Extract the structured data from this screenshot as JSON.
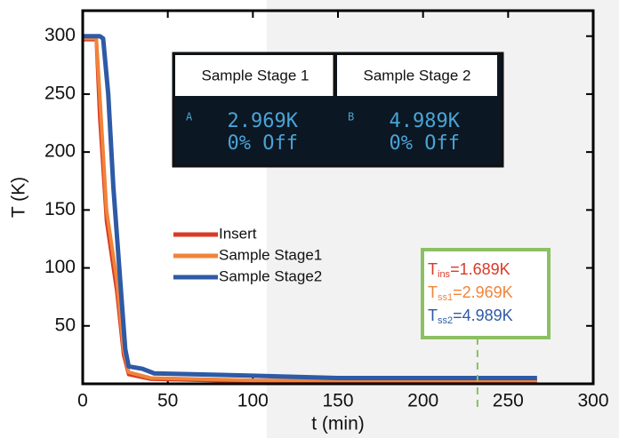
{
  "chart_data": {
    "type": "line",
    "x_label": "t (min)",
    "y_label": "T (K)",
    "xlim": [
      0,
      300
    ],
    "ylim": [
      0,
      322
    ],
    "xticks": [
      0,
      50,
      100,
      150,
      200,
      250,
      300
    ],
    "yticks": [
      50,
      100,
      150,
      200,
      250,
      300
    ],
    "series": [
      {
        "name": "Insert",
        "color": "#d93a26",
        "x": [
          0,
          8,
          10,
          14,
          20,
          24,
          27,
          40,
          100,
          267
        ],
        "values": [
          297,
          297,
          230,
          140,
          80,
          25,
          8,
          4,
          2,
          1.7
        ]
      },
      {
        "name": "Sample Stage1",
        "color": "#f0843a",
        "x": [
          0,
          8,
          10,
          14,
          20,
          24,
          27,
          40,
          100,
          267
        ],
        "values": [
          298,
          298,
          250,
          150,
          90,
          30,
          10,
          5,
          3,
          3
        ]
      },
      {
        "name": "Sample Stage2",
        "color": "#2e5aa6",
        "x": [
          0,
          10,
          12,
          15,
          18,
          22,
          25,
          27,
          35,
          42,
          100,
          150,
          200,
          267
        ],
        "values": [
          300,
          300,
          298,
          250,
          170,
          90,
          30,
          15,
          13,
          9,
          7,
          5,
          5,
          5
        ]
      }
    ],
    "inset": [
      {
        "header": "Sample Stage 1",
        "channel": "A",
        "reading": "2.969K",
        "status": "0% Off"
      },
      {
        "header": "Sample Stage 2",
        "channel": "B",
        "reading": "4.989K",
        "status": "0% Off"
      }
    ],
    "readout_t": 232,
    "readout": [
      {
        "symbol": "T",
        "subscript": "ins",
        "text": "=1.689K",
        "color": "#d93a26"
      },
      {
        "symbol": "T",
        "subscript": "ss1",
        "text": "=2.969K",
        "color": "#f0843a"
      },
      {
        "symbol": "T",
        "subscript": "ss2",
        "text": "=4.989K",
        "color": "#2e5aa6"
      }
    ]
  }
}
